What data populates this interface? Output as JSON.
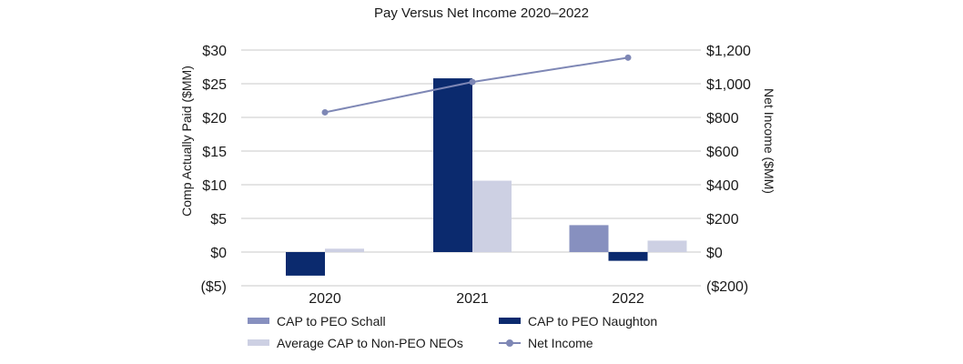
{
  "chart_data": {
    "type": "bar",
    "title": "Pay Versus Net Income 2020–2022",
    "categories": [
      "2020",
      "2021",
      "2022"
    ],
    "ylabel": "Comp Actually Paid ($MM)",
    "ylabel_right": "Net Income ($MM)",
    "ylim": [
      -5,
      30
    ],
    "ylim_right": [
      -200,
      1200
    ],
    "y_ticks": [
      30,
      25,
      20,
      15,
      10,
      5,
      0,
      -5
    ],
    "y_tick_labels": [
      "$30",
      "$25",
      "$20",
      "$15",
      "$10",
      "$5",
      "$0",
      "($5)"
    ],
    "y2_ticks": [
      1200,
      1000,
      800,
      600,
      400,
      200,
      0,
      -200
    ],
    "y2_tick_labels": [
      "$1,200",
      "$1,000",
      "$800",
      "$600",
      "$400",
      "$200",
      "$0",
      "($200)"
    ],
    "grid": true,
    "series": [
      {
        "name": "CAP to PEO Schall",
        "type": "bar",
        "axis": "left",
        "color": "#8790bf",
        "values": [
          null,
          null,
          4.0
        ]
      },
      {
        "name": "CAP to PEO Naughton",
        "type": "bar",
        "axis": "left",
        "color": "#0b2a6e",
        "values": [
          -3.5,
          25.8,
          -1.3
        ]
      },
      {
        "name": "Average CAP to Non-PEO NEOs",
        "type": "bar",
        "axis": "left",
        "color": "#cdd0e3",
        "values": [
          0.5,
          10.6,
          1.7
        ]
      },
      {
        "name": "Net Income",
        "type": "line",
        "axis": "right",
        "color": "#7e87b5",
        "values": [
          830,
          1010,
          1155
        ]
      }
    ],
    "legend": [
      {
        "label": "CAP to PEO Schall",
        "kind": "bar",
        "color": "#8790bf"
      },
      {
        "label": "CAP to PEO Naughton",
        "kind": "bar",
        "color": "#0b2a6e"
      },
      {
        "label": "Average CAP to Non-PEO NEOs",
        "kind": "bar",
        "color": "#cdd0e3"
      },
      {
        "label": "Net Income",
        "kind": "line",
        "color": "#7e87b5"
      }
    ],
    "legend_position": "bottom"
  }
}
